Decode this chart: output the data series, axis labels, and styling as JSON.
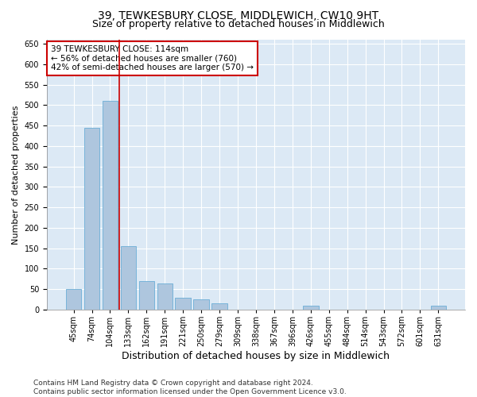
{
  "title1": "39, TEWKESBURY CLOSE, MIDDLEWICH, CW10 9HT",
  "title2": "Size of property relative to detached houses in Middlewich",
  "xlabel": "Distribution of detached houses by size in Middlewich",
  "ylabel": "Number of detached properties",
  "categories": [
    "45sqm",
    "74sqm",
    "104sqm",
    "133sqm",
    "162sqm",
    "191sqm",
    "221sqm",
    "250sqm",
    "279sqm",
    "309sqm",
    "338sqm",
    "367sqm",
    "396sqm",
    "426sqm",
    "455sqm",
    "484sqm",
    "514sqm",
    "543sqm",
    "572sqm",
    "601sqm",
    "631sqm"
  ],
  "values": [
    50,
    445,
    510,
    155,
    70,
    65,
    30,
    25,
    15,
    0,
    0,
    0,
    0,
    10,
    0,
    0,
    0,
    0,
    0,
    0,
    10
  ],
  "bar_color": "#aec6de",
  "bar_edge_color": "#6baed6",
  "vline_x": 2.5,
  "vline_color": "#cc0000",
  "annotation_text": "39 TEWKESBURY CLOSE: 114sqm\n← 56% of detached houses are smaller (760)\n42% of semi-detached houses are larger (570) →",
  "annotation_box_facecolor": "#ffffff",
  "annotation_box_edgecolor": "#cc0000",
  "ylim": [
    0,
    660
  ],
  "yticks": [
    0,
    50,
    100,
    150,
    200,
    250,
    300,
    350,
    400,
    450,
    500,
    550,
    600,
    650
  ],
  "footnote": "Contains HM Land Registry data © Crown copyright and database right 2024.\nContains public sector information licensed under the Open Government Licence v3.0.",
  "fig_facecolor": "#ffffff",
  "plot_facecolor": "#dce9f5",
  "title1_fontsize": 10,
  "title2_fontsize": 9,
  "xlabel_fontsize": 9,
  "ylabel_fontsize": 8,
  "tick_fontsize": 7,
  "footnote_fontsize": 6.5,
  "annotation_fontsize": 7.5
}
